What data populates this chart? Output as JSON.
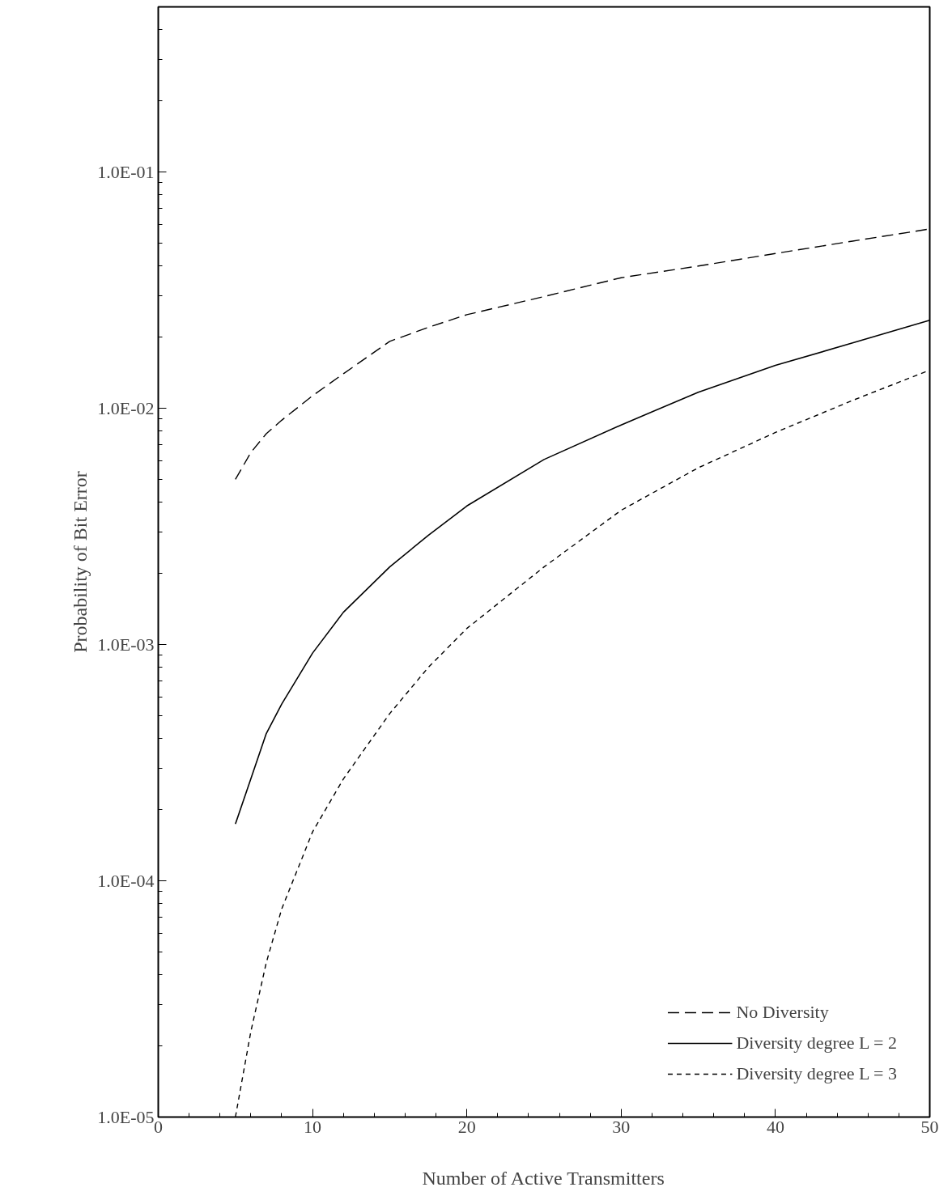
{
  "chart_data": {
    "type": "line",
    "xlabel": "Number of Active Transmitters",
    "ylabel": "Probability of Bit Error",
    "log": "y",
    "grid": false,
    "legend": "bottom right",
    "marker": "none",
    "xlim": [
      0,
      50
    ],
    "xticks": [
      0,
      10,
      20,
      30,
      40,
      50
    ],
    "ylim": [
      1e-05,
      0.5
    ],
    "yticks": [
      {
        "value": 1e-05,
        "label": "1.0E-05"
      },
      {
        "value": 0.0001,
        "label": "1.0E-04"
      },
      {
        "value": 0.001,
        "label": "1.0E-03"
      },
      {
        "value": 0.01,
        "label": "1.0E-02"
      },
      {
        "value": 0.1,
        "label": "1.0E-01"
      }
    ],
    "x": [
      5,
      6,
      7,
      8,
      10,
      12,
      15,
      17.5,
      20,
      25,
      30,
      35,
      40,
      45,
      50
    ],
    "series": [
      {
        "name": "No Diversity",
        "color": "#000000",
        "line_style": "dashed",
        "values": [
          0.005,
          0.0065,
          0.0078,
          0.0089,
          0.0113,
          0.014,
          0.0192,
          0.022,
          0.0249,
          0.0297,
          0.0357,
          0.04,
          0.0452,
          0.051,
          0.0574
        ]
      },
      {
        "name": "Diversity degree L = 2",
        "color": "#000000",
        "line_style": "solid",
        "values": [
          0.000174,
          0.00027,
          0.00042,
          0.00056,
          0.00092,
          0.00137,
          0.00213,
          0.0029,
          0.00386,
          0.00607,
          0.0085,
          0.0117,
          0.0152,
          0.0189,
          0.0236
        ]
      },
      {
        "name": "Diversity degree L = 3",
        "color": "#000000",
        "line_style": "dotted",
        "values": [
          1e-05,
          2.3e-05,
          4.5e-05,
          7.6e-05,
          0.000161,
          0.00027,
          0.00051,
          0.0008,
          0.00117,
          0.00213,
          0.0037,
          0.0056,
          0.0079,
          0.0108,
          0.0145
        ]
      }
    ]
  }
}
